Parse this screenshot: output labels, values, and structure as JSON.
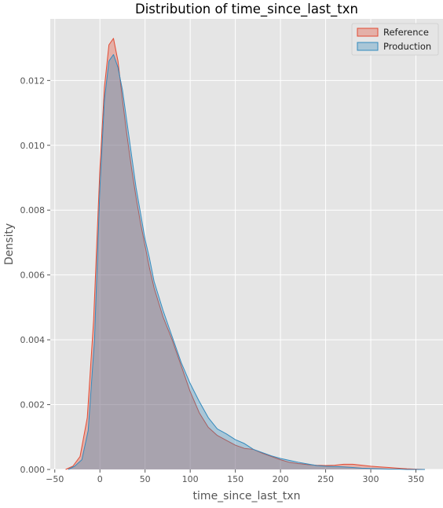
{
  "chart_data": {
    "type": "area",
    "title": "Distribution of time_since_last_txn",
    "xlabel": "time_since_last_txn",
    "ylabel": "Density",
    "xlim": [
      -55,
      380
    ],
    "ylim": [
      0,
      0.0139
    ],
    "xticks": [
      -50,
      0,
      50,
      100,
      150,
      200,
      250,
      300,
      350
    ],
    "xtick_labels": [
      "−50",
      "0",
      "50",
      "100",
      "150",
      "200",
      "250",
      "300",
      "350"
    ],
    "yticks": [
      0,
      0.002,
      0.004,
      0.006,
      0.008,
      0.01,
      0.012
    ],
    "ytick_labels": [
      "0.000",
      "0.002",
      "0.004",
      "0.006",
      "0.008",
      "0.010",
      "0.012"
    ],
    "grid": true,
    "legend_position": "top-right",
    "series": [
      {
        "name": "Reference",
        "color": "#E24A33",
        "x": [
          -38,
          -30,
          -22,
          -14,
          -7,
          0,
          5,
          10,
          15,
          20,
          25,
          30,
          35,
          40,
          45,
          50,
          55,
          60,
          70,
          80,
          90,
          100,
          110,
          120,
          130,
          140,
          150,
          160,
          170,
          180,
          190,
          200,
          210,
          220,
          230,
          240,
          250,
          260,
          270,
          280,
          290,
          300,
          310,
          320,
          330,
          340,
          350,
          360
        ],
        "y": [
          0.0,
          0.0001,
          0.0004,
          0.0016,
          0.0046,
          0.0093,
          0.0118,
          0.0131,
          0.0133,
          0.0126,
          0.0114,
          0.0103,
          0.0093,
          0.0084,
          0.0076,
          0.0069,
          0.0062,
          0.0056,
          0.0047,
          0.004,
          0.0032,
          0.0024,
          0.00175,
          0.0013,
          0.00105,
          0.0009,
          0.00075,
          0.00065,
          0.00062,
          0.0005,
          0.0004,
          0.0003,
          0.00022,
          0.00018,
          0.00015,
          0.00013,
          0.00012,
          0.00013,
          0.00016,
          0.00016,
          0.00013,
          0.0001,
          8e-05,
          6e-05,
          4e-05,
          2e-05,
          1e-05,
          0.0
        ]
      },
      {
        "name": "Production",
        "color": "#348ABD",
        "x": [
          -35,
          -28,
          -20,
          -13,
          -6,
          0,
          5,
          10,
          15,
          20,
          25,
          30,
          35,
          40,
          45,
          50,
          55,
          60,
          70,
          80,
          90,
          100,
          110,
          120,
          130,
          140,
          150,
          160,
          170,
          180,
          190,
          200,
          210,
          220,
          230,
          240,
          250,
          260,
          270,
          280,
          290,
          300,
          310,
          320,
          330,
          340,
          350,
          360
        ],
        "y": [
          0.0,
          0.0001,
          0.0003,
          0.0012,
          0.004,
          0.0087,
          0.0114,
          0.0126,
          0.0128,
          0.0124,
          0.0117,
          0.0107,
          0.0097,
          0.0087,
          0.0079,
          0.0071,
          0.0065,
          0.0058,
          0.0049,
          0.0041,
          0.0033,
          0.00265,
          0.0021,
          0.0016,
          0.00125,
          0.0011,
          0.00092,
          0.0008,
          0.00062,
          0.00052,
          0.00042,
          0.00034,
          0.00028,
          0.00022,
          0.00017,
          0.00012,
          0.0001,
          9e-05,
          8e-05,
          6e-05,
          4e-05,
          3e-05,
          2e-05,
          1e-05,
          1e-05,
          0.0,
          0.0,
          0.0
        ]
      }
    ]
  }
}
